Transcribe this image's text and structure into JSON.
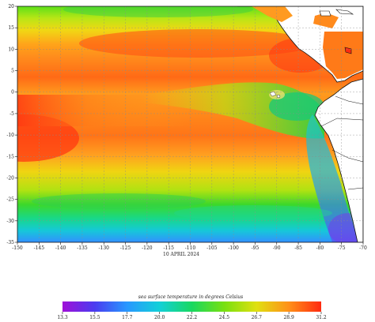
{
  "map": {
    "date_label": "10 APRIL 2024",
    "lon_ticks": [
      "-150",
      "-145",
      "-140",
      "-135",
      "-130",
      "-125",
      "-120",
      "-115",
      "-110",
      "-105",
      "-100",
      "-95",
      "-90",
      "-85",
      "-80",
      "-75",
      "-70"
    ],
    "lat_ticks": [
      "20",
      "15",
      "10",
      "5",
      "0",
      "-5",
      "-10",
      "-15",
      "-20",
      "-25",
      "-30",
      "-35"
    ],
    "colors": {
      "land": "#ffffff",
      "coast": "#111111",
      "grid": "#8c8c8c"
    }
  },
  "colorbar": {
    "title": "sea surface temperature in degrees Celsius",
    "ticks": [
      "13.3",
      "15.5",
      "17.7",
      "20.0",
      "22.2",
      "24.5",
      "26.7",
      "28.9",
      "31.2"
    ],
    "colors": [
      "#a010d8",
      "#4a3cf0",
      "#2898ff",
      "#12d0d8",
      "#18d860",
      "#78e010",
      "#e0e010",
      "#ff9018",
      "#ff2a10"
    ]
  }
}
